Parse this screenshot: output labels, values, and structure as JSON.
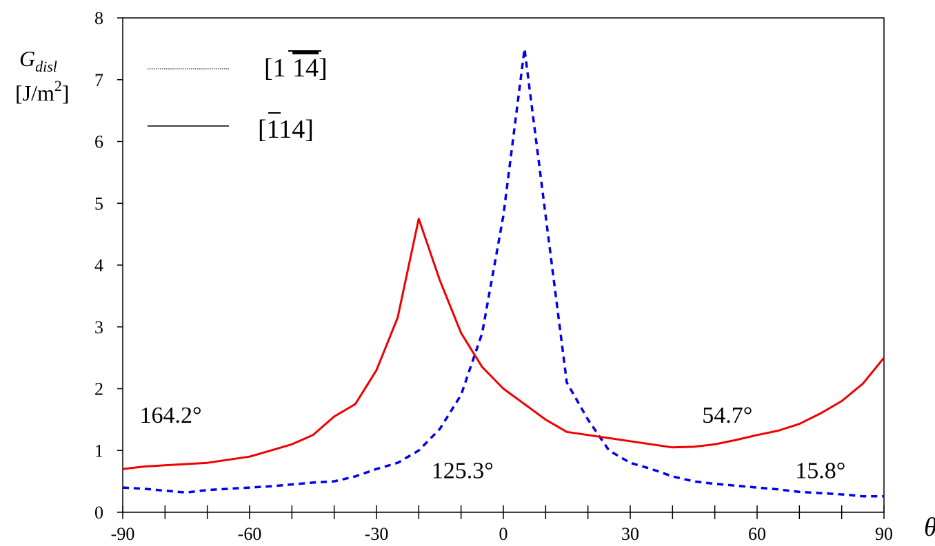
{
  "chart_data": {
    "type": "line",
    "title": "",
    "ylabel": {
      "line1_main": "G",
      "line1_sub": "disl",
      "line2_main": "[J/m",
      "line2_sup": "2",
      "line2_end": "]"
    },
    "xlabel": "θ",
    "xlim": [
      -90,
      90
    ],
    "ylim": [
      0,
      8
    ],
    "x_ticks": [
      -90,
      -60,
      -30,
      0,
      30,
      60,
      90
    ],
    "x_minor_step": 10,
    "y_ticks": [
      0,
      1,
      2,
      3,
      4,
      5,
      6,
      7,
      8
    ],
    "grid": false,
    "legend": {
      "placement": "top-left",
      "entries": [
        {
          "series": 0,
          "label_parts": [
            "[1 ",
            "14",
            "]"
          ],
          "overline_part": 1
        },
        {
          "series": 1,
          "label_parts": [
            "[",
            "1",
            "14]"
          ],
          "overline_part": 1
        }
      ]
    },
    "series": [
      {
        "style": "dashed",
        "color": "#0000ee",
        "x": [
          -90,
          -85,
          -80,
          -75,
          -70,
          -65,
          -60,
          -55,
          -50,
          -45,
          -40,
          -35,
          -30,
          -25,
          -20,
          -15,
          -10,
          -5,
          0,
          5,
          10,
          15,
          20,
          25,
          30,
          35,
          40,
          45,
          50,
          55,
          60,
          65,
          70,
          75,
          80,
          85,
          90
        ],
        "y": [
          0.4,
          0.38,
          0.35,
          0.32,
          0.36,
          0.38,
          0.4,
          0.42,
          0.45,
          0.48,
          0.5,
          0.58,
          0.7,
          0.8,
          1.0,
          1.35,
          1.9,
          2.9,
          4.8,
          7.5,
          4.8,
          2.1,
          1.5,
          1.0,
          0.8,
          0.7,
          0.58,
          0.5,
          0.46,
          0.43,
          0.4,
          0.37,
          0.33,
          0.31,
          0.29,
          0.26,
          0.26
        ]
      },
      {
        "style": "solid",
        "color": "#ee0000",
        "x": [
          -90,
          -85,
          -80,
          -75,
          -70,
          -65,
          -60,
          -55,
          -50,
          -45,
          -40,
          -35,
          -30,
          -25,
          -20,
          -15,
          -10,
          -5,
          0,
          5,
          10,
          15,
          20,
          25,
          30,
          35,
          40,
          45,
          50,
          55,
          60,
          65,
          70,
          75,
          80,
          85,
          90
        ],
        "y": [
          0.7,
          0.74,
          0.76,
          0.78,
          0.8,
          0.85,
          0.9,
          1.0,
          1.1,
          1.25,
          1.55,
          1.75,
          2.3,
          3.15,
          4.75,
          3.75,
          2.9,
          2.35,
          2.0,
          1.75,
          1.5,
          1.3,
          1.25,
          1.2,
          1.15,
          1.1,
          1.05,
          1.06,
          1.1,
          1.17,
          1.25,
          1.32,
          1.43,
          1.6,
          1.8,
          2.08,
          2.5
        ]
      }
    ],
    "annotations": [
      {
        "text": "164.2°",
        "x": -86,
        "y": 1.45
      },
      {
        "text": "125.3°",
        "x": -17,
        "y": 0.55
      },
      {
        "text": "54.7°",
        "x": 47,
        "y": 1.45
      },
      {
        "text": "15.8°",
        "x": 69,
        "y": 0.55
      }
    ]
  }
}
